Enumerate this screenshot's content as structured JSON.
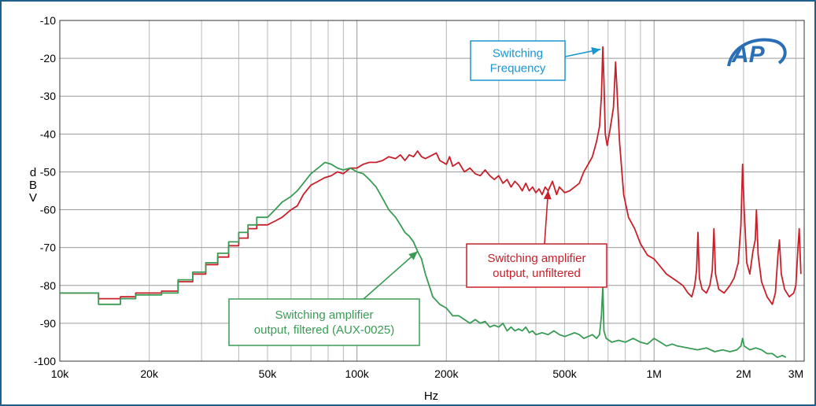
{
  "chart_data": {
    "type": "line",
    "xlabel": "Hz",
    "ylabel": "dBV",
    "xscale": "log",
    "xlim": [
      10000,
      3200000
    ],
    "ylim": [
      -100,
      -10
    ],
    "grid": true,
    "x_ticks": [
      {
        "value": 10000,
        "label": "10k"
      },
      {
        "value": 20000,
        "label": "20k"
      },
      {
        "value": 50000,
        "label": "50k"
      },
      {
        "value": 100000,
        "label": "100k"
      },
      {
        "value": 200000,
        "label": "200k"
      },
      {
        "value": 500000,
        "label": "500k"
      },
      {
        "value": 1000000,
        "label": "1M"
      },
      {
        "value": 2000000,
        "label": "2M"
      },
      {
        "value": 3000000,
        "label": "3M"
      }
    ],
    "y_ticks": [
      {
        "value": -10,
        "label": "-10"
      },
      {
        "value": -20,
        "label": "-20"
      },
      {
        "value": -30,
        "label": "-30"
      },
      {
        "value": -40,
        "label": "-40"
      },
      {
        "value": -50,
        "label": "-50"
      },
      {
        "value": -60,
        "label": "-60"
      },
      {
        "value": -70,
        "label": "-70"
      },
      {
        "value": -80,
        "label": "-80"
      },
      {
        "value": -90,
        "label": "-90"
      },
      {
        "value": -100,
        "label": "-100"
      }
    ],
    "series": [
      {
        "color": "#c8202a",
        "points": [
          [
            10000,
            -82
          ],
          [
            12000,
            -82
          ],
          [
            13500,
            -82
          ],
          [
            13500,
            -83.5
          ],
          [
            16000,
            -83.5
          ],
          [
            16000,
            -83
          ],
          [
            18000,
            -83
          ],
          [
            18000,
            -82
          ],
          [
            22000,
            -82
          ],
          [
            22000,
            -81.5
          ],
          [
            25000,
            -81.5
          ],
          [
            25000,
            -79
          ],
          [
            28000,
            -79
          ],
          [
            28000,
            -77
          ],
          [
            31000,
            -77
          ],
          [
            31000,
            -74.5
          ],
          [
            34000,
            -74.5
          ],
          [
            34000,
            -72.5
          ],
          [
            37000,
            -72.5
          ],
          [
            37000,
            -69.5
          ],
          [
            40000,
            -69.5
          ],
          [
            40000,
            -67.5
          ],
          [
            43000,
            -67.5
          ],
          [
            43000,
            -65
          ],
          [
            46000,
            -65
          ],
          [
            46000,
            -64
          ],
          [
            50000,
            -64
          ],
          [
            53000,
            -63
          ],
          [
            56000,
            -62
          ],
          [
            60000,
            -60
          ],
          [
            63000,
            -59
          ],
          [
            66000,
            -56
          ],
          [
            70000,
            -53.5
          ],
          [
            74000,
            -52.5
          ],
          [
            78000,
            -51.5
          ],
          [
            82000,
            -51
          ],
          [
            86000,
            -50
          ],
          [
            90000,
            -50.5
          ],
          [
            95000,
            -49
          ],
          [
            100000,
            -49
          ],
          [
            105000,
            -48
          ],
          [
            110000,
            -47.5
          ],
          [
            116000,
            -47.5
          ],
          [
            122000,
            -47
          ],
          [
            128000,
            -46
          ],
          [
            135000,
            -46.5
          ],
          [
            140000,
            -45.5
          ],
          [
            145000,
            -47
          ],
          [
            150000,
            -45.5
          ],
          [
            155000,
            -46
          ],
          [
            160000,
            -44.5
          ],
          [
            165000,
            -46
          ],
          [
            170000,
            -46.5
          ],
          [
            180000,
            -45.5
          ],
          [
            185000,
            -45
          ],
          [
            190000,
            -47
          ],
          [
            200000,
            -48
          ],
          [
            205000,
            -46
          ],
          [
            210000,
            -48.5
          ],
          [
            220000,
            -47.5
          ],
          [
            230000,
            -50
          ],
          [
            240000,
            -49
          ],
          [
            250000,
            -50.5
          ],
          [
            260000,
            -51
          ],
          [
            270000,
            -49.5
          ],
          [
            280000,
            -51
          ],
          [
            290000,
            -52
          ],
          [
            300000,
            -51
          ],
          [
            310000,
            -53
          ],
          [
            320000,
            -52
          ],
          [
            330000,
            -54
          ],
          [
            340000,
            -52.5
          ],
          [
            350000,
            -53.5
          ],
          [
            360000,
            -55
          ],
          [
            370000,
            -53
          ],
          [
            380000,
            -55
          ],
          [
            390000,
            -54
          ],
          [
            400000,
            -55.5
          ],
          [
            410000,
            -54.5
          ],
          [
            420000,
            -56
          ],
          [
            430000,
            -54
          ],
          [
            440000,
            -55
          ],
          [
            455000,
            -52.5
          ],
          [
            470000,
            -56
          ],
          [
            480000,
            -54
          ],
          [
            500000,
            -55.5
          ],
          [
            520000,
            -55
          ],
          [
            540000,
            -54
          ],
          [
            560000,
            -53
          ],
          [
            580000,
            -50
          ],
          [
            600000,
            -48
          ],
          [
            620000,
            -46
          ],
          [
            640000,
            -42
          ],
          [
            655000,
            -38
          ],
          [
            665000,
            -30
          ],
          [
            672000,
            -17
          ],
          [
            678000,
            -26
          ],
          [
            685000,
            -40
          ],
          [
            695000,
            -43
          ],
          [
            710000,
            -39
          ],
          [
            730000,
            -33
          ],
          [
            742000,
            -21
          ],
          [
            752000,
            -30
          ],
          [
            765000,
            -42
          ],
          [
            790000,
            -56
          ],
          [
            820000,
            -62
          ],
          [
            860000,
            -65
          ],
          [
            900000,
            -69
          ],
          [
            950000,
            -72
          ],
          [
            1000000,
            -73
          ],
          [
            1050000,
            -75
          ],
          [
            1100000,
            -77
          ],
          [
            1150000,
            -78
          ],
          [
            1200000,
            -79
          ],
          [
            1250000,
            -80
          ],
          [
            1300000,
            -82
          ],
          [
            1340000,
            -83
          ],
          [
            1370000,
            -80
          ],
          [
            1390000,
            -76
          ],
          [
            1405000,
            -66
          ],
          [
            1420000,
            -78
          ],
          [
            1450000,
            -81
          ],
          [
            1500000,
            -82
          ],
          [
            1540000,
            -80
          ],
          [
            1570000,
            -76
          ],
          [
            1590000,
            -65
          ],
          [
            1610000,
            -77
          ],
          [
            1650000,
            -81
          ],
          [
            1720000,
            -82
          ],
          [
            1800000,
            -80
          ],
          [
            1860000,
            -78
          ],
          [
            1920000,
            -74
          ],
          [
            1960000,
            -64
          ],
          [
            1985000,
            -48
          ],
          [
            2010000,
            -60
          ],
          [
            2050000,
            -74
          ],
          [
            2100000,
            -77
          ],
          [
            2150000,
            -71
          ],
          [
            2190000,
            -68
          ],
          [
            2210000,
            -60
          ],
          [
            2240000,
            -72
          ],
          [
            2300000,
            -79
          ],
          [
            2400000,
            -83
          ],
          [
            2500000,
            -85
          ],
          [
            2560000,
            -82
          ],
          [
            2610000,
            -72
          ],
          [
            2640000,
            -68
          ],
          [
            2680000,
            -77
          ],
          [
            2750000,
            -81
          ],
          [
            2850000,
            -83
          ],
          [
            2950000,
            -82
          ],
          [
            3000000,
            -80
          ],
          [
            3050000,
            -70
          ],
          [
            3080000,
            -65
          ],
          [
            3120000,
            -77
          ]
        ]
      },
      {
        "color": "#3a9b55",
        "points": [
          [
            10000,
            -82
          ],
          [
            13500,
            -82
          ],
          [
            13500,
            -85
          ],
          [
            16000,
            -85
          ],
          [
            16000,
            -83.5
          ],
          [
            18000,
            -83.5
          ],
          [
            18000,
            -82.5
          ],
          [
            22000,
            -82.5
          ],
          [
            22000,
            -82
          ],
          [
            25000,
            -82
          ],
          [
            25000,
            -78.5
          ],
          [
            28000,
            -78.5
          ],
          [
            28000,
            -76.5
          ],
          [
            31000,
            -76.5
          ],
          [
            31000,
            -74
          ],
          [
            34000,
            -74
          ],
          [
            34000,
            -71.5
          ],
          [
            37000,
            -71.5
          ],
          [
            37000,
            -68.5
          ],
          [
            40000,
            -68.5
          ],
          [
            40000,
            -66
          ],
          [
            43000,
            -66
          ],
          [
            43000,
            -64
          ],
          [
            46000,
            -64
          ],
          [
            46000,
            -62
          ],
          [
            50000,
            -62
          ],
          [
            53000,
            -60
          ],
          [
            56000,
            -58
          ],
          [
            60000,
            -56.5
          ],
          [
            63000,
            -55
          ],
          [
            66000,
            -53
          ],
          [
            70000,
            -50.5
          ],
          [
            74000,
            -49
          ],
          [
            78000,
            -47.5
          ],
          [
            82000,
            -48
          ],
          [
            86000,
            -49
          ],
          [
            90000,
            -49.5
          ],
          [
            95000,
            -49
          ],
          [
            100000,
            -50
          ],
          [
            105000,
            -50.5
          ],
          [
            110000,
            -52
          ],
          [
            116000,
            -54
          ],
          [
            122000,
            -57
          ],
          [
            128000,
            -60
          ],
          [
            135000,
            -62
          ],
          [
            140000,
            -64
          ],
          [
            145000,
            -66
          ],
          [
            150000,
            -67
          ],
          [
            155000,
            -68.5
          ],
          [
            160000,
            -71
          ],
          [
            165000,
            -73
          ],
          [
            170000,
            -77
          ],
          [
            175000,
            -80
          ],
          [
            180000,
            -83
          ],
          [
            185000,
            -84
          ],
          [
            190000,
            -85
          ],
          [
            200000,
            -86
          ],
          [
            210000,
            -88
          ],
          [
            220000,
            -88
          ],
          [
            230000,
            -89
          ],
          [
            240000,
            -90
          ],
          [
            250000,
            -89
          ],
          [
            260000,
            -90
          ],
          [
            270000,
            -89.5
          ],
          [
            280000,
            -91
          ],
          [
            290000,
            -90.5
          ],
          [
            300000,
            -91
          ],
          [
            310000,
            -90
          ],
          [
            320000,
            -92
          ],
          [
            330000,
            -91
          ],
          [
            340000,
            -92
          ],
          [
            350000,
            -91.5
          ],
          [
            360000,
            -92
          ],
          [
            370000,
            -91
          ],
          [
            380000,
            -92.5
          ],
          [
            390000,
            -92
          ],
          [
            400000,
            -93
          ],
          [
            420000,
            -92.5
          ],
          [
            440000,
            -93
          ],
          [
            460000,
            -92
          ],
          [
            480000,
            -93
          ],
          [
            500000,
            -93.5
          ],
          [
            520000,
            -93
          ],
          [
            540000,
            -92.5
          ],
          [
            560000,
            -93
          ],
          [
            580000,
            -94
          ],
          [
            600000,
            -93.5
          ],
          [
            620000,
            -93
          ],
          [
            640000,
            -94
          ],
          [
            655000,
            -93
          ],
          [
            665000,
            -88
          ],
          [
            672000,
            -80
          ],
          [
            678000,
            -92
          ],
          [
            690000,
            -94
          ],
          [
            720000,
            -95
          ],
          [
            760000,
            -94.5
          ],
          [
            800000,
            -95
          ],
          [
            850000,
            -94
          ],
          [
            900000,
            -95
          ],
          [
            950000,
            -95.5
          ],
          [
            1000000,
            -94
          ],
          [
            1050000,
            -95
          ],
          [
            1100000,
            -96
          ],
          [
            1150000,
            -95.5
          ],
          [
            1200000,
            -96
          ],
          [
            1300000,
            -96.5
          ],
          [
            1400000,
            -97
          ],
          [
            1500000,
            -96.5
          ],
          [
            1600000,
            -97.5
          ],
          [
            1700000,
            -97
          ],
          [
            1800000,
            -97.5
          ],
          [
            1900000,
            -97
          ],
          [
            1960000,
            -96
          ],
          [
            1985000,
            -94
          ],
          [
            2010000,
            -96
          ],
          [
            2100000,
            -97
          ],
          [
            2200000,
            -96.5
          ],
          [
            2300000,
            -97
          ],
          [
            2400000,
            -98
          ],
          [
            2500000,
            -98
          ],
          [
            2600000,
            -99
          ],
          [
            2700000,
            -98.5
          ],
          [
            2780000,
            -99
          ]
        ]
      }
    ],
    "annotations": [
      {
        "lines": [
          "Switching",
          "Frequency"
        ],
        "color": "#1a96d0"
      },
      {
        "lines": [
          "Switching amplifier",
          "output, unfiltered"
        ],
        "color": "#c8202a"
      },
      {
        "lines": [
          "Switching amplifier",
          "output, filtered (AUX-0025)"
        ],
        "color": "#3a9b55"
      }
    ],
    "logo": {
      "text": "AP",
      "color": "#2a6eb5"
    }
  }
}
